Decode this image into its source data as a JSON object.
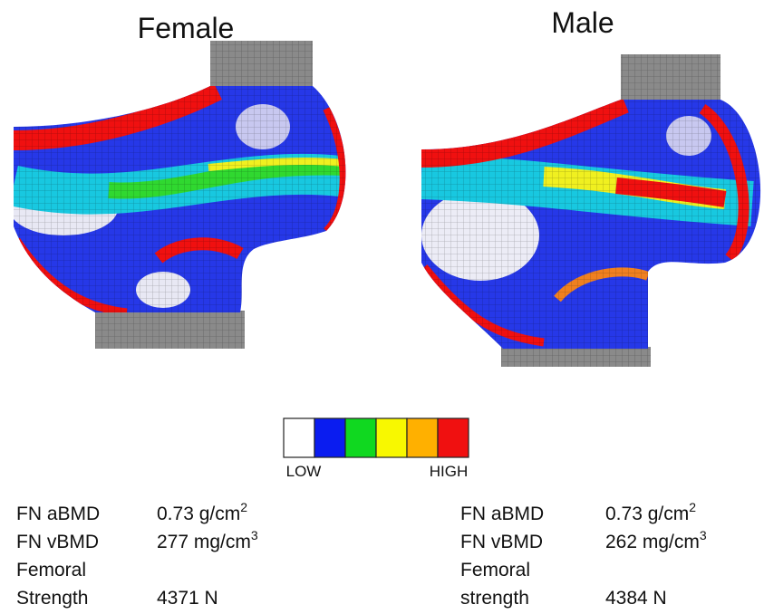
{
  "panels": [
    {
      "title": "Female",
      "stats": [
        {
          "label": "FN aBMD",
          "value": "0.73 g/cm",
          "sup": "2"
        },
        {
          "label": "FN vBMD",
          "value": "277 mg/cm",
          "sup": "3"
        },
        {
          "label": "Femoral"
        },
        {
          "label": "Strength",
          "value": "4371 N"
        }
      ]
    },
    {
      "title": "Male",
      "stats": [
        {
          "label": "FN aBMD",
          "value": "0.73 g/cm",
          "sup": "2"
        },
        {
          "label": "FN vBMD",
          "value": "262 mg/cm",
          "sup": "3"
        },
        {
          "label": "Femoral"
        },
        {
          "label": "strength",
          "value": "4384 N"
        }
      ]
    }
  ],
  "colorbar": {
    "colors": [
      "#ffffff",
      "#0a1cf0",
      "#10d820",
      "#f8f800",
      "#ffb000",
      "#f01010"
    ],
    "low_label": "LOW",
    "high_label": "HIGH"
  }
}
